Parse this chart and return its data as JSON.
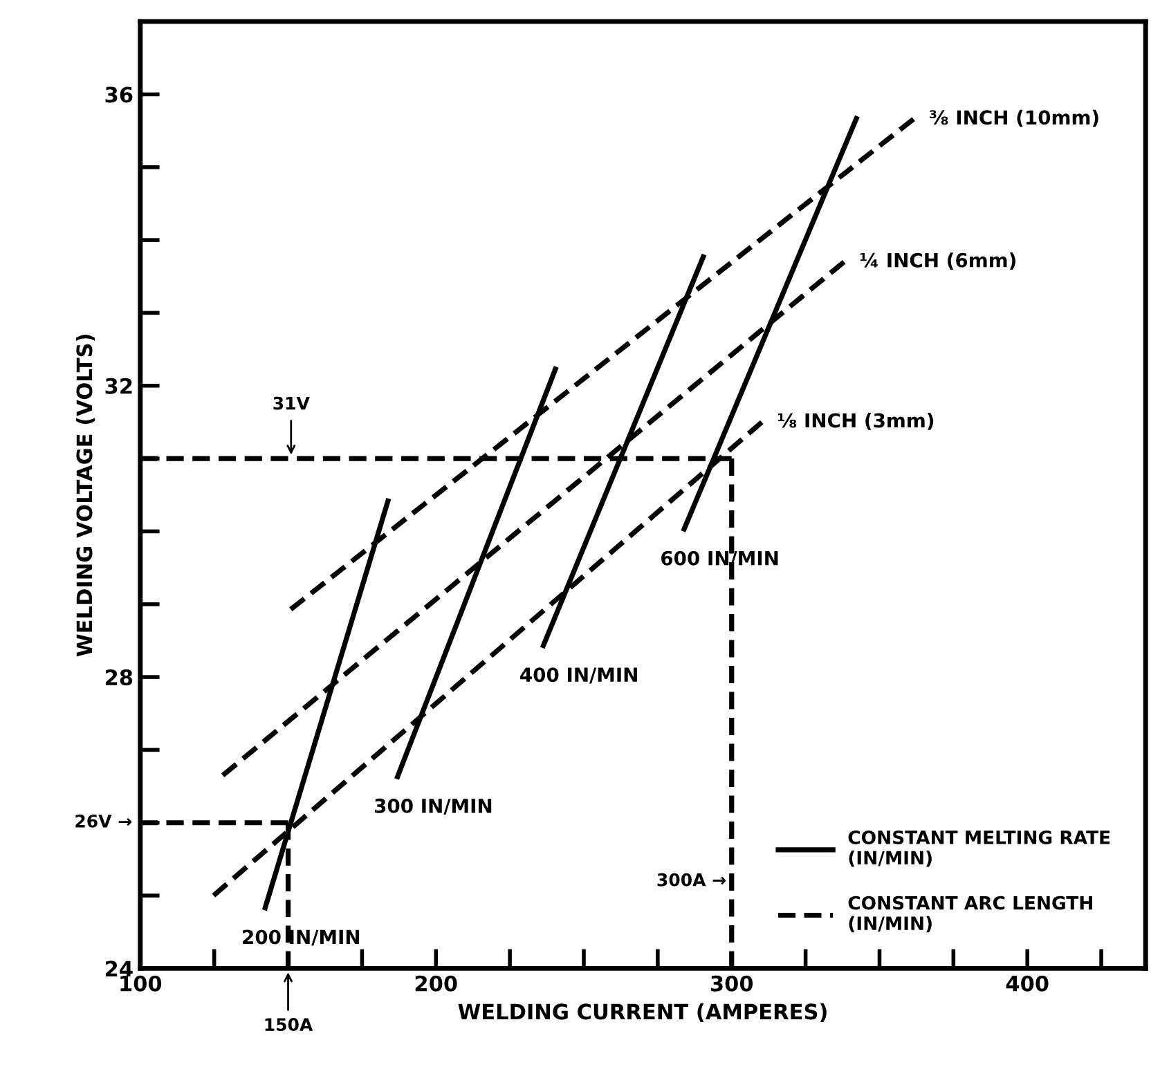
{
  "chart_data": {
    "type": "line",
    "xlabel": "WELDING CURRENT (AMPERES)",
    "ylabel": "WELDING VOLTAGE (VOLTS)",
    "xlim": [
      100,
      440
    ],
    "ylim": [
      24,
      37
    ],
    "xticks": [
      100,
      {
        "value": 125,
        "label": null
      },
      {
        "value": 175,
        "label": null
      },
      200,
      {
        "value": 225,
        "label": null
      },
      {
        "value": 250,
        "label": null
      },
      {
        "value": 275,
        "label": null
      },
      300,
      {
        "value": 325,
        "label": null
      },
      {
        "value": 350,
        "label": null
      },
      {
        "value": 375,
        "label": null
      },
      400,
      {
        "value": 425,
        "label": null
      }
    ],
    "yticks": [
      24,
      {
        "value": 25,
        "label": null
      },
      {
        "value": 26,
        "label": null
      },
      {
        "value": 27,
        "label": null
      },
      28,
      {
        "value": 29,
        "label": null
      },
      {
        "value": 30,
        "label": null
      },
      {
        "value": 31,
        "label": null
      },
      32,
      {
        "value": 33,
        "label": null
      },
      {
        "value": 34,
        "label": null
      },
      {
        "value": 35,
        "label": null
      },
      36
    ],
    "grid": false,
    "legend": "lower right",
    "marker": "none",
    "series": [
      {
        "name": "200 IN/MIN",
        "line_style": "solid",
        "color": "#000000",
        "x": [
          142,
          184
        ],
        "values": [
          24.8,
          30.45
        ]
      },
      {
        "name": "300 IN/MIN",
        "line_style": "solid",
        "color": "#000000",
        "x": [
          186.7,
          240.7
        ],
        "values": [
          26.6,
          32.26
        ]
      },
      {
        "name": "400 IN/MIN",
        "line_style": "solid",
        "color": "#000000",
        "x": [
          236,
          290.7
        ],
        "values": [
          28.4,
          33.8
        ]
      },
      {
        "name": "600 IN/MIN",
        "line_style": "solid",
        "color": "#000000",
        "x": [
          283.6,
          342.5
        ],
        "values": [
          30.0,
          35.7
        ]
      },
      {
        "name": "⅛ INCH (3mm)",
        "line_style": "dashed",
        "color": "#000000",
        "x": [
          124.8,
          310.2
        ],
        "values": [
          25.0,
          31.5
        ]
      },
      {
        "name": "¼ INCH (6mm)",
        "line_style": "dashed",
        "color": "#000000",
        "x": [
          127.9,
          338
        ],
        "values": [
          26.65,
          33.7
        ]
      },
      {
        "name": "⅜ INCH (10mm)",
        "line_style": "dashed",
        "color": "#000000",
        "x": [
          150.9,
          361.5
        ],
        "values": [
          28.93,
          35.66
        ]
      },
      {
        "line_style": "dashed",
        "color": "#000000",
        "x": [
          100,
          150
        ],
        "values": [
          26,
          26
        ]
      },
      {
        "line_style": "dashed",
        "color": "#000000",
        "x": [
          150,
          150
        ],
        "values": [
          24,
          26
        ]
      },
      {
        "line_style": "dashed",
        "color": "#000000",
        "x": [
          100,
          300
        ],
        "values": [
          31,
          31
        ]
      },
      {
        "line_style": "dashed",
        "color": "#000000",
        "x": [
          300,
          300
        ],
        "values": [
          24,
          31
        ]
      }
    ],
    "annotations": [
      {
        "text": "31V",
        "x": 151,
        "y": 31
      },
      "26V →",
      {
        "text": "150A",
        "x": 150,
        "y": 24
      },
      "300A →",
      "CONSTANT MELTING RATE\n(IN/MIN)",
      "CONSTANT ARC LENGTH\n(IN/MIN)"
    ]
  }
}
